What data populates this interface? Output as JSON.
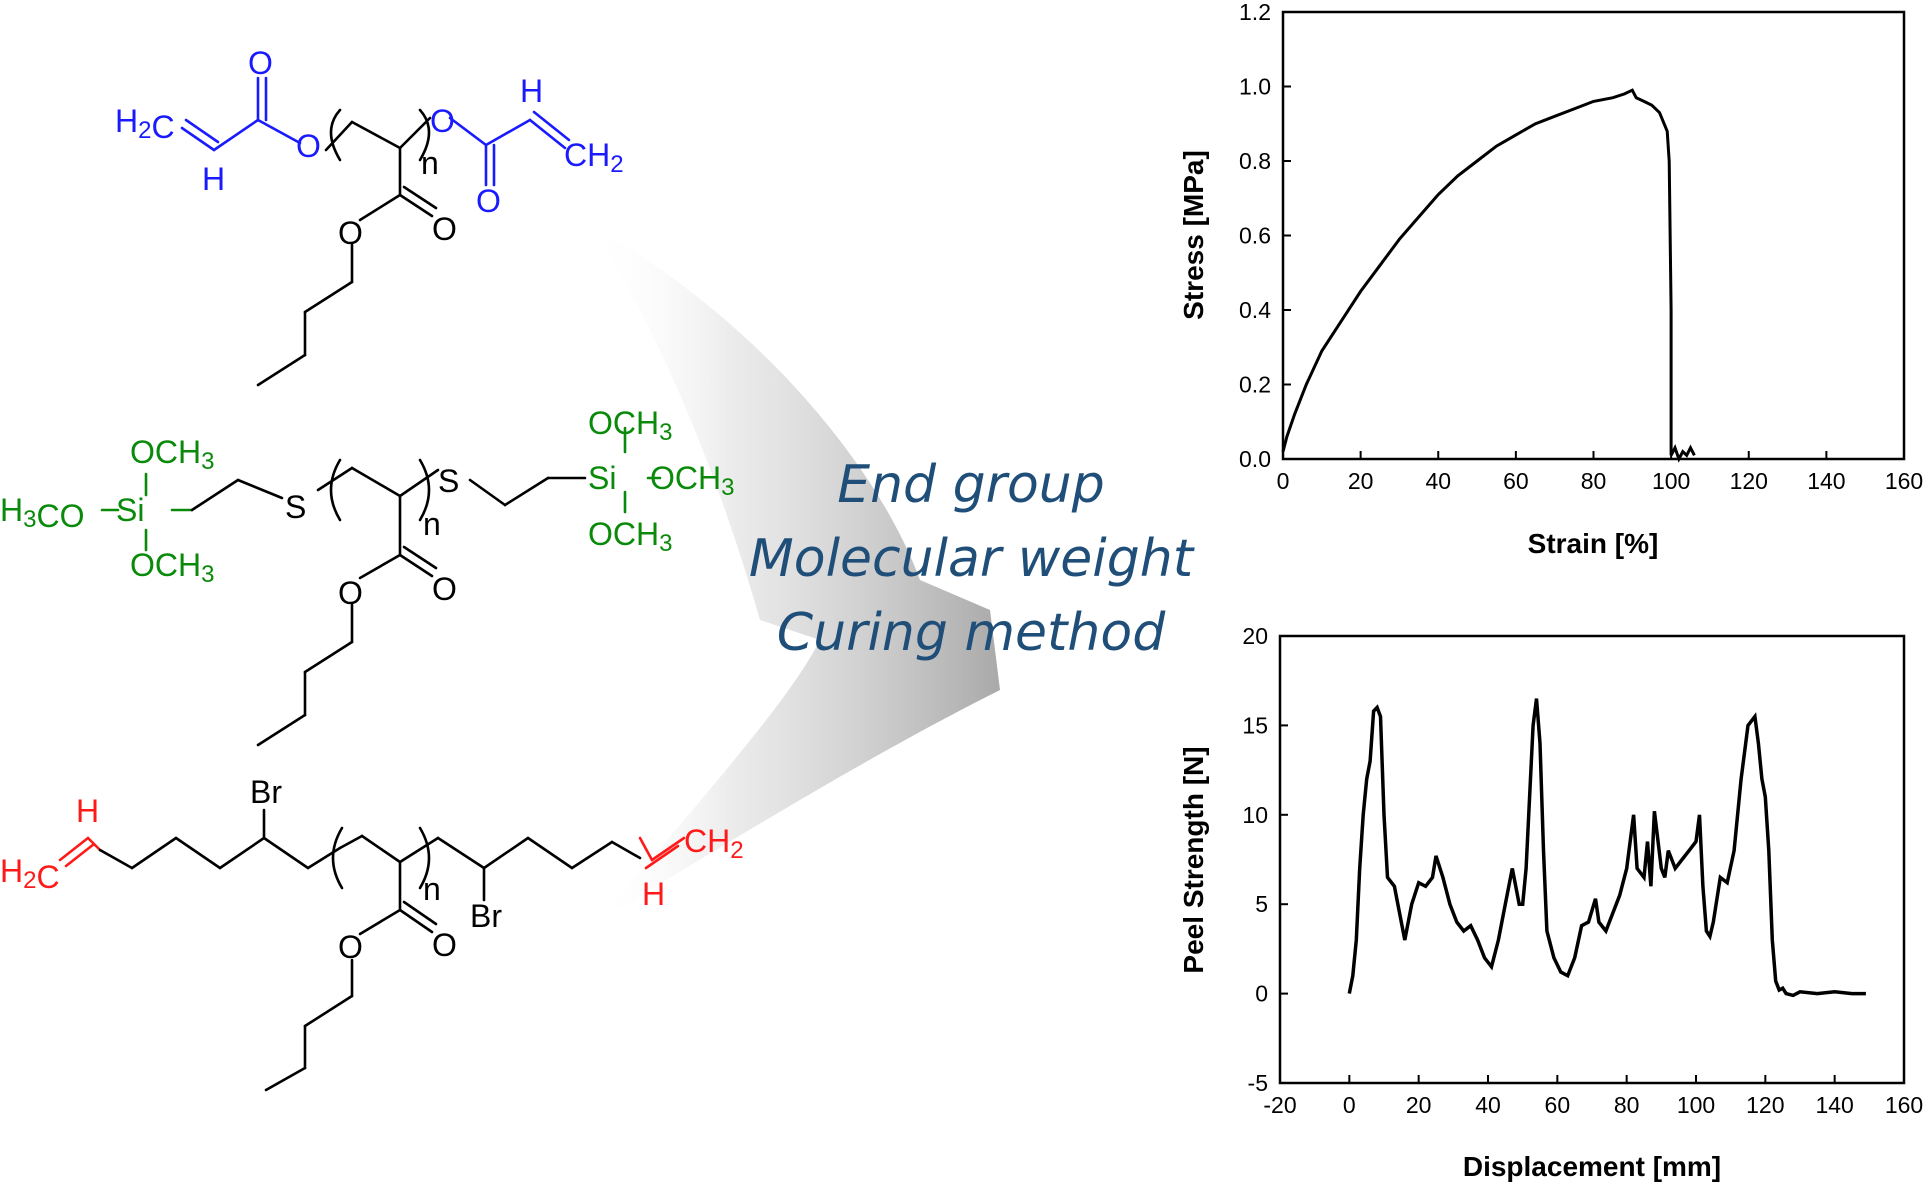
{
  "colors": {
    "acrylate": "#1a1aff",
    "silane": "#0a8a0a",
    "alkene": "#ff1a1a",
    "backbone": "#000000",
    "center_text": "#1f4e79",
    "curve": "#000000"
  },
  "molecules": {
    "top": {
      "h2c": "H2C",
      "h_bottom": "H",
      "o_carbonyl_left": "O",
      "o_ester_left": "O",
      "n": "n",
      "o_ester_right": "O",
      "h_top": "H",
      "ch2": "CH2",
      "o_carbonyl_right": "O",
      "o_side_ester": "O",
      "o_side_carbonyl": "O"
    },
    "middle": {
      "och3_top_left": "OCH3",
      "h3co": "H3CO",
      "si_left": "Si",
      "och3_bottom_left": "OCH3",
      "s_left": "S",
      "n": "n",
      "s_right": "S",
      "och3_top_right": "OCH3",
      "si_right": "Si",
      "och3_right": "OCH3",
      "och3_bottom_right": "OCH3",
      "o_side_ester": "O",
      "o_side_carbonyl": "O"
    },
    "bottom": {
      "h_left": "H",
      "h2c": "H2C",
      "br_top": "Br",
      "n": "n",
      "br_bottom": "Br",
      "ch2": "CH2",
      "h_right": "H",
      "o_side_ester": "O",
      "o_side_carbonyl": "O"
    }
  },
  "center_text": {
    "line1": "End group",
    "line2": "Molecular weight",
    "line3": "Curing method"
  },
  "chart_data": [
    {
      "type": "line",
      "title": "",
      "xlabel": "Strain [%]",
      "ylabel": "Stress [MPa]",
      "xlim": [
        0,
        160
      ],
      "ylim": [
        0,
        1.2
      ],
      "xticks": [
        0,
        20,
        40,
        60,
        80,
        100,
        120,
        140,
        160
      ],
      "yticks": [
        0.0,
        0.2,
        0.4,
        0.6,
        0.8,
        1.0,
        1.2
      ],
      "xtick_labels": [
        "0",
        "20",
        "40",
        "60",
        "80",
        "100",
        "120",
        "140",
        "160"
      ],
      "ytick_labels": [
        "0.0",
        "0.2",
        "0.4",
        "0.6",
        "0.8",
        "1.0",
        "1.2"
      ],
      "grid": false,
      "series": [
        {
          "x": [
            0,
            1,
            3,
            6,
            10,
            15,
            20,
            25,
            30,
            35,
            40,
            45,
            50,
            55,
            60,
            65,
            70,
            75,
            80,
            85,
            88,
            90,
            91,
            93,
            95,
            97,
            99,
            99.5,
            100,
            100,
            101,
            102,
            103,
            104,
            105,
            106
          ],
          "y": [
            0.02,
            0.06,
            0.12,
            0.2,
            0.29,
            0.37,
            0.45,
            0.52,
            0.59,
            0.65,
            0.71,
            0.76,
            0.8,
            0.84,
            0.87,
            0.9,
            0.92,
            0.94,
            0.96,
            0.97,
            0.98,
            0.99,
            0.97,
            0.96,
            0.95,
            0.93,
            0.88,
            0.8,
            0.4,
            0.01,
            0.03,
            0.0,
            0.02,
            0.01,
            0.03,
            0.01
          ]
        }
      ]
    },
    {
      "type": "line",
      "title": "",
      "xlabel": "Displacement [mm]",
      "ylabel": "Peel Strength [N]",
      "xlim": [
        -20,
        160
      ],
      "ylim": [
        -5,
        20
      ],
      "xticks": [
        -20,
        0,
        20,
        40,
        60,
        80,
        100,
        120,
        140,
        160
      ],
      "yticks": [
        -5,
        0,
        5,
        10,
        15,
        20
      ],
      "xtick_labels": [
        "-20",
        "0",
        "20",
        "40",
        "60",
        "80",
        "100",
        "120",
        "140",
        "160"
      ],
      "ytick_labels": [
        "-5",
        "0",
        "5",
        "10",
        "15",
        "20"
      ],
      "grid": false,
      "series": [
        {
          "x": [
            0,
            1,
            2,
            3,
            4,
            5,
            6,
            7,
            8,
            9,
            10,
            11,
            13,
            15,
            16,
            18,
            20,
            22,
            24,
            25,
            27,
            29,
            31,
            33,
            35,
            37,
            39,
            41,
            43,
            45,
            47,
            49,
            50,
            51,
            53,
            54,
            55,
            56,
            57,
            59,
            61,
            63,
            65,
            67,
            69,
            71,
            72,
            74,
            76,
            78,
            80,
            82,
            83,
            85,
            86,
            87,
            88,
            90,
            91,
            92,
            94,
            96,
            98,
            100,
            101,
            102,
            103,
            104,
            105,
            107,
            109,
            111,
            113,
            115,
            117,
            118,
            119,
            120,
            121,
            122,
            123,
            124,
            125,
            126,
            128,
            130,
            135,
            140,
            145,
            149
          ],
          "y": [
            0,
            1,
            3,
            7,
            10,
            12,
            13,
            15.8,
            16,
            15.5,
            10,
            6.5,
            6,
            4,
            3,
            5,
            6.2,
            6,
            6.5,
            7.7,
            6.5,
            5,
            4,
            3.5,
            3.8,
            3,
            2,
            1.5,
            3,
            5,
            7,
            5,
            5,
            7,
            15,
            16.5,
            14,
            8,
            3.5,
            2,
            1.2,
            1,
            2,
            3.8,
            4,
            5.3,
            4,
            3.5,
            4.5,
            5.5,
            7,
            10,
            7,
            6.5,
            8.5,
            6,
            10.2,
            7,
            6.5,
            8,
            7,
            7.5,
            8,
            8.5,
            10,
            6,
            3.5,
            3.2,
            4,
            6.5,
            6.2,
            8,
            12,
            15,
            15.5,
            14,
            12,
            11,
            8,
            3,
            0.7,
            0.2,
            0.3,
            0,
            -0.1,
            0.1,
            0,
            0.1,
            0,
            0
          ]
        }
      ]
    }
  ]
}
